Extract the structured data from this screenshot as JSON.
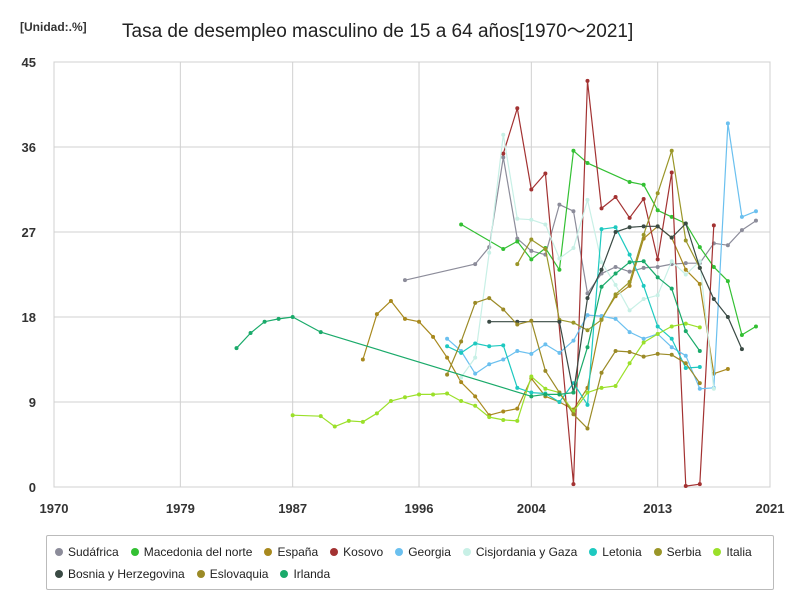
{
  "chart_data": {
    "type": "line",
    "title": "Tasa de desempleo masculino de 15 a 64 años[1970〜2021]",
    "unit_label": "[Unidad:.%]",
    "xlabel": "",
    "ylabel": "",
    "xlim": [
      1970,
      2021
    ],
    "ylim": [
      0,
      45
    ],
    "x_ticks": [
      1970,
      1979,
      1987,
      1996,
      2004,
      2013,
      2021
    ],
    "y_ticks": [
      0,
      9,
      18,
      27,
      36,
      45
    ],
    "grid": true,
    "legend_position": "bottom",
    "series": [
      {
        "name": "Sudáfrica",
        "color": "#8c8c9a",
        "x": [
          1995,
          2000,
          2001,
          2002,
          2003,
          2004,
          2005,
          2006,
          2007,
          2008,
          2009,
          2010,
          2011,
          2012,
          2013,
          2014,
          2015,
          2016,
          2017,
          2018,
          2019,
          2020
        ],
        "y": [
          21.9,
          23.6,
          25.4,
          34.9,
          26.3,
          25.0,
          24.6,
          29.9,
          29.2,
          20.5,
          22.6,
          23.3,
          22.8,
          23.2,
          23.3,
          23.6,
          23.7,
          23.7,
          25.8,
          25.6,
          27.2,
          28.2
        ]
      },
      {
        "name": "Macedonia del norte",
        "color": "#33c033",
        "x": [
          1999,
          2002,
          2003,
          2004,
          2005,
          2006,
          2007,
          2008,
          2011,
          2012,
          2013,
          2014,
          2015,
          2016,
          2017,
          2018,
          2019,
          2020
        ],
        "y": [
          27.8,
          25.2,
          26.0,
          24.1,
          25.3,
          23.0,
          35.6,
          34.3,
          32.3,
          32.0,
          29.3,
          28.6,
          27.9,
          25.4,
          23.3,
          21.8,
          16.1,
          17.0
        ]
      },
      {
        "name": "España",
        "color": "#a8891e",
        "x": [
          1992,
          1993,
          1994,
          1995,
          1996,
          1997,
          1998,
          1999,
          2000,
          2001,
          2002,
          2003,
          2004,
          2005,
          2006,
          2007,
          2008,
          2009,
          2010,
          2011,
          2012,
          2013,
          2014,
          2015,
          2016,
          2017,
          2018
        ],
        "y": [
          13.5,
          18.3,
          19.7,
          17.8,
          17.5,
          15.9,
          13.7,
          11.1,
          9.6,
          7.6,
          8.0,
          8.3,
          11.5,
          9.6,
          9.0,
          8.2,
          10.5,
          17.8,
          20.2,
          21.3,
          26.3,
          27.6,
          26.4,
          23.0,
          21.5,
          12.0,
          12.5
        ]
      },
      {
        "name": "Kosovo",
        "color": "#a33232",
        "x": [
          2002,
          2003,
          2004,
          2005,
          2007,
          2008,
          2009,
          2010,
          2011,
          2012,
          2013,
          2014,
          2015,
          2016,
          2017
        ],
        "y": [
          35.3,
          40.1,
          31.5,
          33.2,
          0.3,
          43.0,
          29.5,
          30.7,
          28.5,
          30.5,
          24.1,
          33.3,
          0.1,
          0.3,
          27.7
        ]
      },
      {
        "name": "Georgia",
        "color": "#6bc0ef",
        "x": [
          1998,
          1999,
          2000,
          2001,
          2002,
          2003,
          2004,
          2005,
          2006,
          2007,
          2008,
          2009,
          2010,
          2011,
          2012,
          2013,
          2014,
          2015,
          2016,
          2017,
          2018,
          2019,
          2020
        ],
        "y": [
          15.7,
          14.4,
          12.0,
          13.0,
          13.5,
          14.4,
          14.1,
          15.1,
          14.2,
          15.5,
          18.2,
          18.1,
          17.8,
          16.4,
          15.7,
          16.2,
          14.8,
          13.9,
          10.4,
          10.5,
          38.5,
          28.6,
          29.2
        ]
      },
      {
        "name": "Cisjordania y Gaza",
        "color": "#c8f0e6",
        "x": [
          1999,
          2000,
          2001,
          2002,
          2003,
          2004,
          2005,
          2006,
          2007,
          2008,
          2009,
          2010,
          2011,
          2012,
          2013,
          2014,
          2015,
          2016,
          2017
        ],
        "y": [
          11.6,
          13.7,
          24.8,
          37.3,
          28.4,
          28.3,
          27.8,
          24.2,
          25.3,
          30.4,
          23.8,
          21.4,
          18.7,
          19.9,
          20.3,
          23.9,
          22.5,
          23.9,
          10.4
        ]
      },
      {
        "name": "Letonia",
        "color": "#1ec9c0",
        "x": [
          1998,
          1999,
          2000,
          2001,
          2002,
          2003,
          2004,
          2005,
          2006,
          2007,
          2008,
          2009,
          2010,
          2011,
          2012,
          2013,
          2014,
          2015,
          2016
        ],
        "y": [
          14.9,
          14.2,
          15.2,
          14.9,
          15.0,
          10.5,
          10.0,
          9.9,
          9.0,
          11.0,
          8.7,
          27.3,
          27.5,
          24.6,
          21.3,
          17.0,
          15.7,
          12.6,
          12.7
        ]
      },
      {
        "name": "Serbia",
        "color": "#9a9628",
        "x": [
          2003,
          2004,
          2005,
          2006,
          2007,
          2008,
          2009,
          2010,
          2011,
          2012,
          2013,
          2014,
          2015,
          2016
        ],
        "y": [
          23.6,
          26.2,
          25.2,
          17.7,
          17.4,
          16.6,
          17.7,
          20.4,
          21.7,
          26.7,
          31.1,
          35.6,
          26.1,
          23.2
        ]
      },
      {
        "name": "Italia",
        "color": "#9be02a",
        "x": [
          1987,
          1989,
          1990,
          1991,
          1992,
          1993,
          1994,
          1995,
          1996,
          1997,
          1998,
          1999,
          2000,
          2001,
          2002,
          2003,
          2004,
          2005,
          2006,
          2007,
          2008,
          2009,
          2010,
          2011,
          2012,
          2013,
          2014,
          2015,
          2016
        ],
        "y": [
          7.6,
          7.5,
          6.4,
          7.0,
          6.9,
          7.8,
          9.1,
          9.5,
          9.8,
          9.8,
          9.9,
          9.1,
          8.6,
          7.4,
          7.1,
          7.0,
          11.7,
          10.4,
          10.0,
          8.0,
          10.0,
          10.5,
          10.7,
          13.1,
          15.3,
          16.2,
          17.0,
          17.3,
          16.9
        ]
      },
      {
        "name": "Bosnia y Herzegovina",
        "color": "#3a4a44",
        "x": [
          2001,
          2003,
          2006,
          2007,
          2008,
          2009,
          2010,
          2011,
          2012,
          2013,
          2014,
          2015,
          2016,
          2017,
          2018,
          2019
        ],
        "y": [
          17.5,
          17.5,
          17.5,
          10.0,
          20.0,
          23.0,
          27.0,
          27.5,
          27.6,
          27.6,
          26.4,
          27.9,
          23.2,
          19.9,
          18.0,
          14.6
        ]
      },
      {
        "name": "Eslovaquia",
        "color": "#9b8a26",
        "x": [
          1998,
          1999,
          2000,
          2001,
          2002,
          2003,
          2004,
          2005,
          2006,
          2007,
          2008,
          2009,
          2010,
          2011,
          2012,
          2013,
          2014,
          2015,
          2016
        ],
        "y": [
          11.9,
          15.4,
          19.5,
          20.0,
          18.8,
          17.2,
          17.6,
          12.3,
          10.0,
          7.7,
          6.2,
          12.1,
          14.4,
          14.3,
          13.8,
          14.1,
          14.0,
          13.1,
          11.0
        ]
      },
      {
        "name": "Irlanda",
        "color": "#1aaa6a",
        "x": [
          1983,
          1984,
          1985,
          1986,
          1987,
          1989,
          2004,
          2005,
          2006,
          2007,
          2008,
          2009,
          2010,
          2011,
          2012,
          2013,
          2014,
          2015,
          2016
        ],
        "y": [
          14.7,
          16.3,
          17.5,
          17.8,
          18.0,
          16.4,
          9.6,
          9.8,
          9.8,
          10.0,
          14.8,
          21.2,
          22.6,
          23.8,
          23.9,
          22.2,
          21.0,
          16.5,
          14.4
        ]
      }
    ]
  }
}
